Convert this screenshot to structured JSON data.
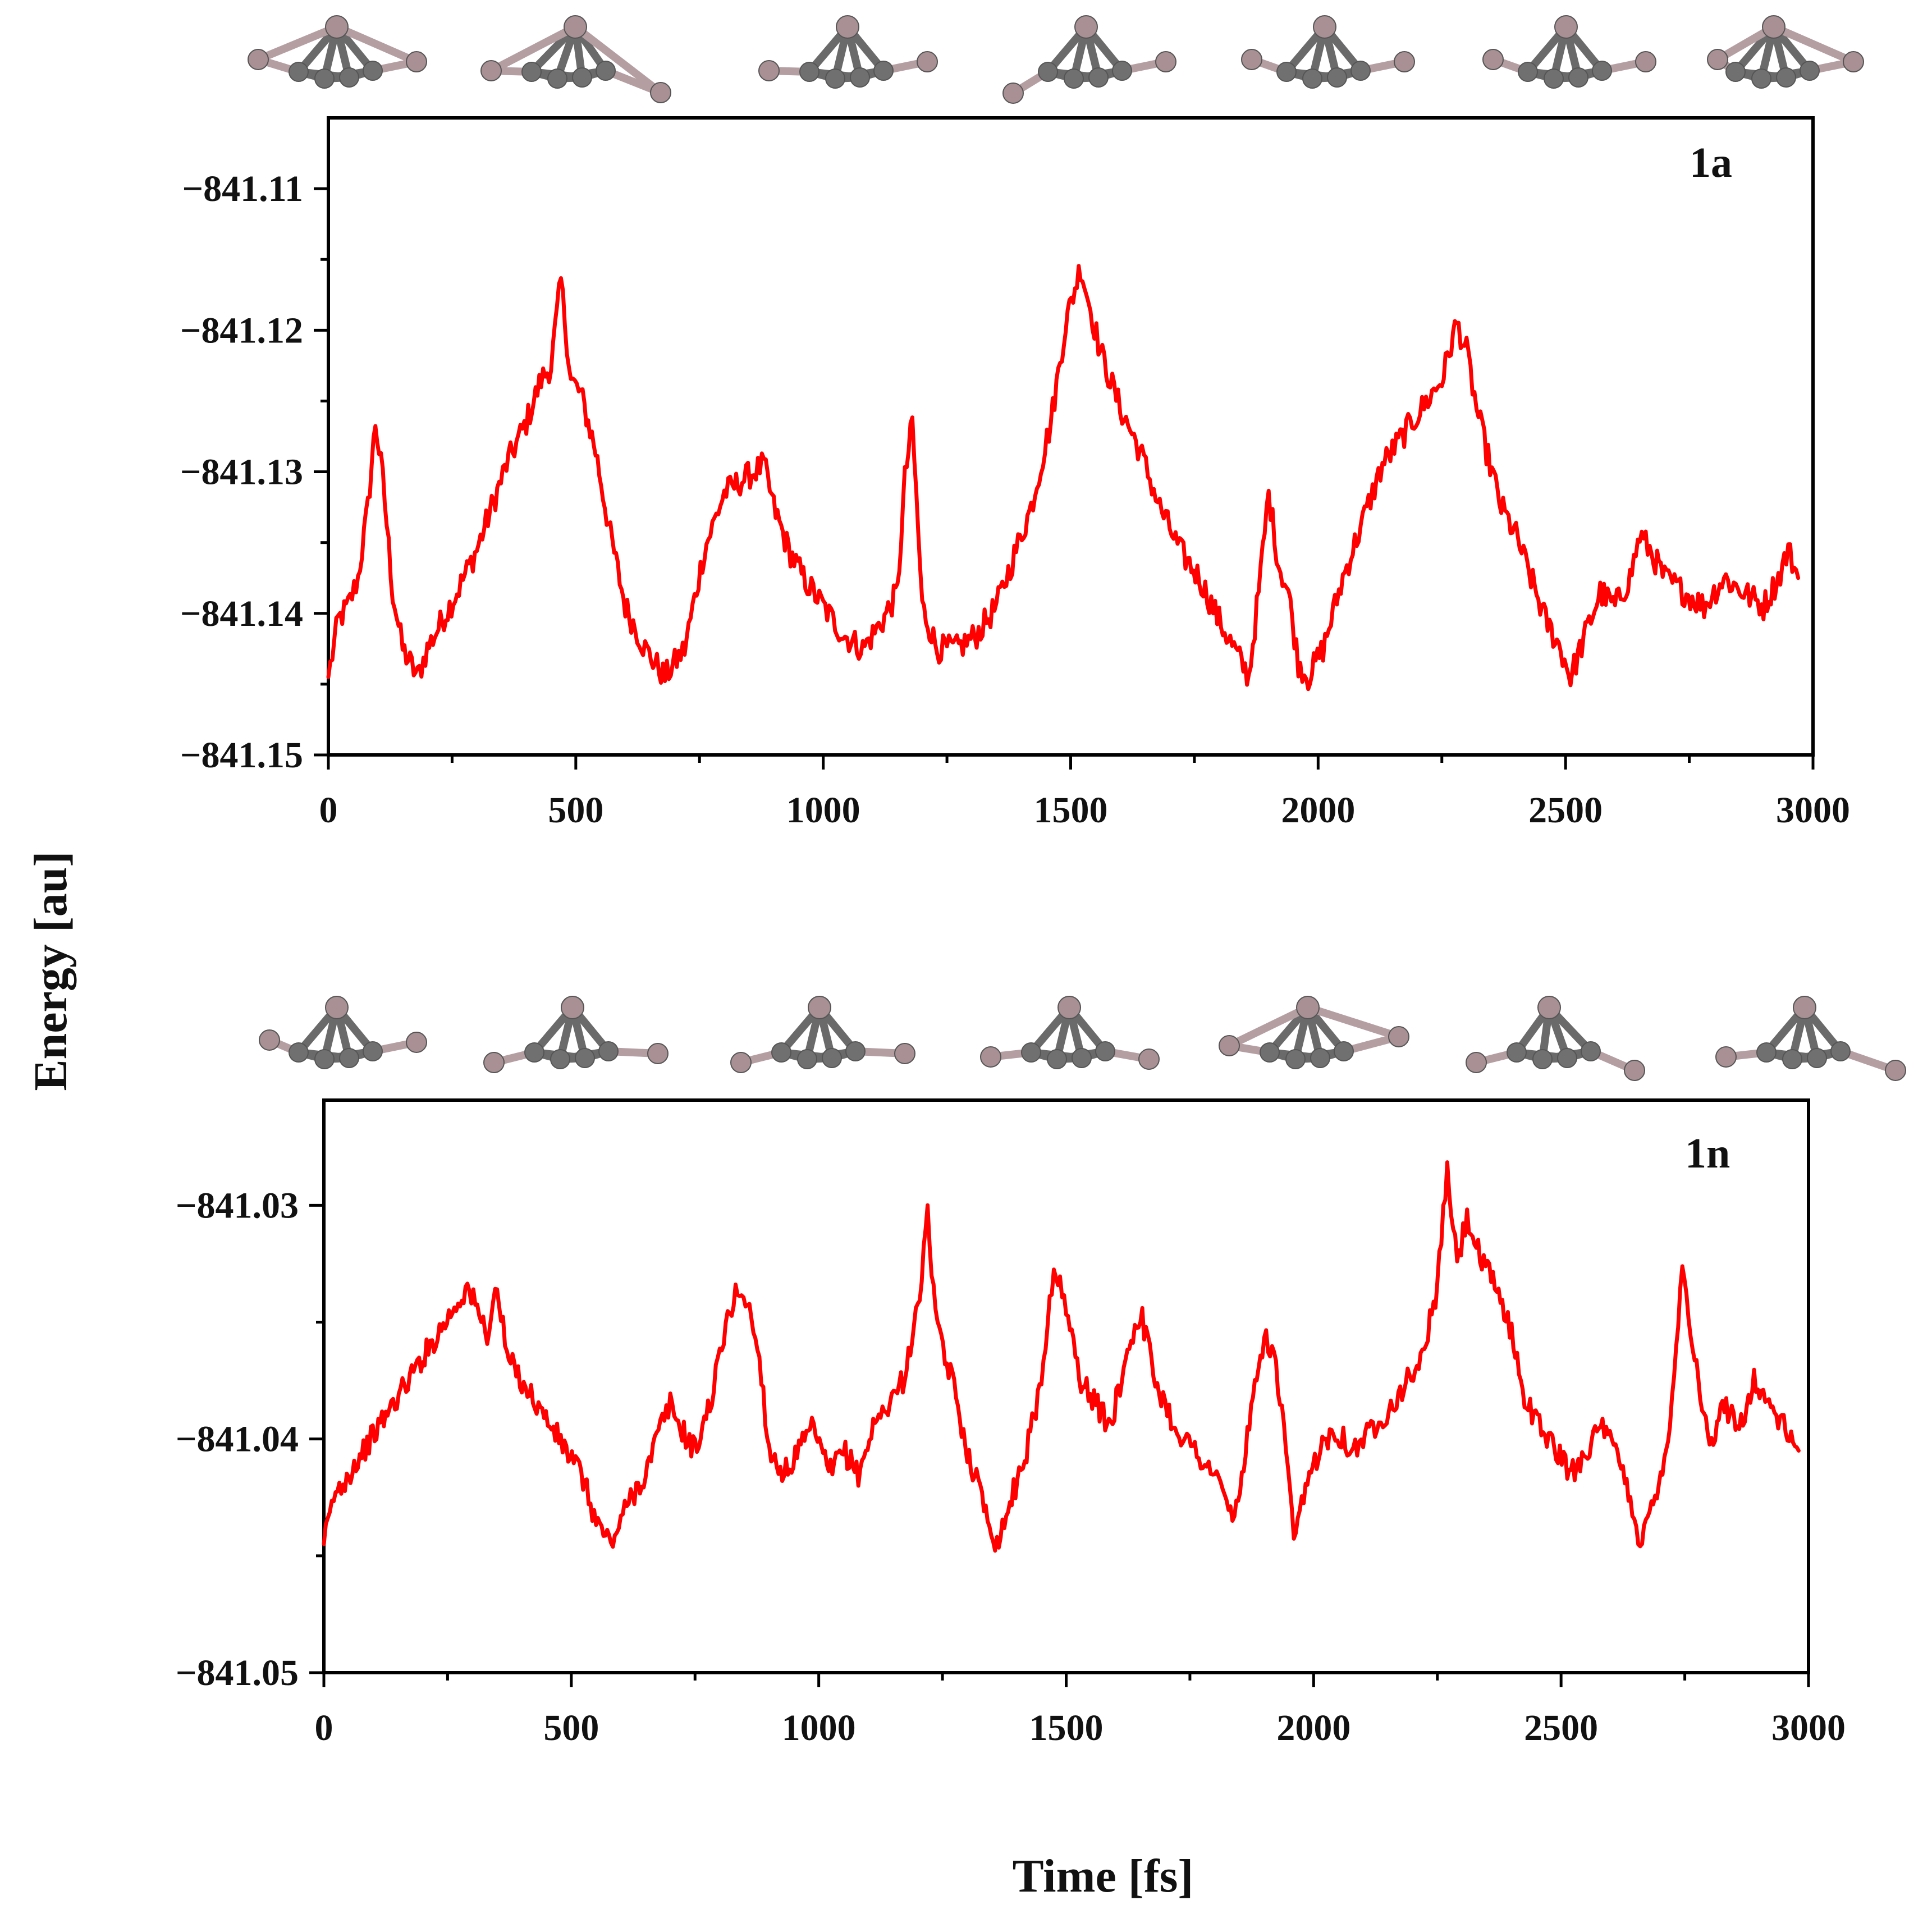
{
  "figure": {
    "ylabel": "Energy [au]",
    "xlabel": "Time [fs]"
  },
  "colors": {
    "series": "#ff0000",
    "atom_gray": "#707070",
    "atom_pink": "#a89094",
    "bond_gray": "#6a6a6a",
    "bond_pink": "#b49ea2"
  },
  "chart_data": [
    {
      "type": "line",
      "panel_label": "1a",
      "title": "",
      "xlabel": "Time [fs]",
      "ylabel": "Energy [au]",
      "xlim": [
        0,
        3000
      ],
      "ylim": [
        -841.15,
        -841.105
      ],
      "xticks": [
        0,
        500,
        1000,
        1500,
        2000,
        2500,
        3000
      ],
      "xtick_labels": [
        "0",
        "500",
        "1000",
        "1500",
        "2000",
        "2500",
        "3000"
      ],
      "yticks": [
        -841.11,
        -841.12,
        -841.13,
        -841.14,
        -841.15
      ],
      "ytick_labels": [
        "−841.11",
        "−841.12",
        "−841.13",
        "−841.14",
        "−841.15"
      ],
      "grid": false,
      "series": [
        {
          "name": "1a",
          "x": [
            0,
            20,
            40,
            60,
            80,
            95,
            110,
            130,
            150,
            180,
            200,
            230,
            260,
            300,
            330,
            360,
            400,
            430,
            450,
            470,
            490,
            510,
            540,
            570,
            600,
            640,
            680,
            720,
            760,
            800,
            840,
            880,
            900,
            930,
            960,
            1000,
            1040,
            1080,
            1120,
            1150,
            1165,
            1180,
            1200,
            1230,
            1270,
            1310,
            1350,
            1390,
            1420,
            1460,
            1490,
            1520,
            1540,
            1560,
            1600,
            1640,
            1680,
            1720,
            1760,
            1800,
            1830,
            1860,
            1880,
            1900,
            1920,
            1940,
            1960,
            1980,
            2010,
            2050,
            2090,
            2130,
            2170,
            2210,
            2250,
            2280,
            2300,
            2320,
            2340,
            2370,
            2400,
            2430,
            2460,
            2490,
            2510,
            2540,
            2570,
            2600,
            2630,
            2650,
            2670,
            2700,
            2740,
            2780,
            2820,
            2860,
            2900,
            2930,
            2950,
            2970
          ],
          "values": [
            -841.1445,
            -841.1405,
            -841.1395,
            -841.1375,
            -841.1325,
            -841.1265,
            -841.1305,
            -841.1385,
            -841.1425,
            -841.1445,
            -841.1425,
            -841.1405,
            -841.1385,
            -841.1355,
            -841.1325,
            -841.1295,
            -841.1265,
            -841.1235,
            -841.1225,
            -841.1165,
            -841.1235,
            -841.1245,
            -841.1285,
            -841.1345,
            -841.1395,
            -841.1425,
            -841.1445,
            -841.1425,
            -841.1355,
            -841.1315,
            -841.1305,
            -841.1295,
            -841.1325,
            -841.1355,
            -841.1375,
            -841.1395,
            -841.1415,
            -841.1425,
            -841.1405,
            -841.1385,
            -841.1305,
            -841.1265,
            -841.1395,
            -841.1425,
            -841.1425,
            -841.1415,
            -841.1395,
            -841.1355,
            -841.1325,
            -841.1265,
            -841.1195,
            -841.1155,
            -841.1185,
            -841.1215,
            -841.1255,
            -841.1285,
            -841.1325,
            -841.1355,
            -841.1375,
            -841.1405,
            -841.1425,
            -841.1445,
            -841.1385,
            -841.1315,
            -841.1365,
            -841.1385,
            -841.1435,
            -841.1445,
            -841.1425,
            -841.1375,
            -841.1335,
            -841.1295,
            -841.1275,
            -841.1255,
            -841.1235,
            -841.1195,
            -841.1215,
            -841.1255,
            -841.1285,
            -841.1325,
            -841.1345,
            -841.1375,
            -841.1405,
            -841.1425,
            -841.1445,
            -841.1415,
            -841.1385,
            -841.1395,
            -841.1375,
            -841.1345,
            -841.1355,
            -841.1375,
            -841.1385,
            -841.1395,
            -841.1375,
            -841.1385,
            -841.1395,
            -841.1375,
            -841.1355,
            -841.1375
          ]
        }
      ]
    },
    {
      "type": "line",
      "panel_label": "1n",
      "title": "",
      "xlabel": "Time [fs]",
      "ylabel": "Energy [au]",
      "xlim": [
        0,
        3000
      ],
      "ylim": [
        -841.05,
        -841.0255
      ],
      "xticks": [
        0,
        500,
        1000,
        1500,
        2000,
        2500,
        3000
      ],
      "xtick_labels": [
        "0",
        "500",
        "1000",
        "1500",
        "2000",
        "2500",
        "3000"
      ],
      "yticks": [
        -841.03,
        -841.04,
        -841.05
      ],
      "ytick_labels": [
        "−841.03",
        "−841.04",
        "−841.05"
      ],
      "grid": false,
      "series": [
        {
          "name": "1n",
          "x": [
            0,
            20,
            50,
            80,
            110,
            140,
            170,
            200,
            230,
            260,
            290,
            310,
            330,
            350,
            370,
            400,
            430,
            460,
            490,
            520,
            550,
            580,
            620,
            650,
            680,
            700,
            720,
            750,
            780,
            820,
            840,
            860,
            880,
            900,
            930,
            960,
            990,
            1020,
            1050,
            1080,
            1110,
            1140,
            1170,
            1200,
            1220,
            1240,
            1270,
            1300,
            1330,
            1360,
            1390,
            1420,
            1450,
            1475,
            1500,
            1530,
            1560,
            1590,
            1620,
            1650,
            1680,
            1720,
            1760,
            1800,
            1840,
            1870,
            1900,
            1920,
            1940,
            1960,
            1980,
            2010,
            2040,
            2080,
            2120,
            2160,
            2190,
            2220,
            2250,
            2270,
            2290,
            2310,
            2340,
            2370,
            2400,
            2430,
            2460,
            2490,
            2520,
            2550,
            2580,
            2610,
            2640,
            2660,
            2690,
            2720,
            2745,
            2770,
            2800,
            2830,
            2860,
            2890,
            2920,
            2950,
            2980
          ],
          "values": [
            -841.0445,
            -841.0425,
            -841.0415,
            -841.0405,
            -841.0395,
            -841.0385,
            -841.0375,
            -841.0365,
            -841.0355,
            -841.0345,
            -841.0335,
            -841.0345,
            -841.0355,
            -841.0335,
            -841.0365,
            -841.0375,
            -841.0385,
            -841.0395,
            -841.0405,
            -841.0415,
            -841.0435,
            -841.0445,
            -841.0425,
            -841.0415,
            -841.0395,
            -841.0385,
            -841.0395,
            -841.0405,
            -841.0385,
            -841.0345,
            -841.0335,
            -841.0345,
            -841.0365,
            -841.0405,
            -841.0415,
            -841.0405,
            -841.0395,
            -841.0415,
            -841.0405,
            -841.0415,
            -841.0395,
            -841.0385,
            -841.0375,
            -841.0345,
            -841.0305,
            -841.0355,
            -841.0375,
            -841.0405,
            -841.0425,
            -841.0445,
            -841.0425,
            -841.0405,
            -841.0375,
            -841.0325,
            -841.0345,
            -841.0375,
            -841.0385,
            -841.0395,
            -841.0365,
            -841.0345,
            -841.0375,
            -841.0395,
            -841.0405,
            -841.0415,
            -841.0435,
            -841.0395,
            -841.0355,
            -841.0365,
            -841.0395,
            -841.0445,
            -841.0425,
            -841.0405,
            -841.0395,
            -841.0405,
            -841.0395,
            -841.0385,
            -841.0375,
            -841.0365,
            -841.0335,
            -841.0285,
            -841.0325,
            -841.0305,
            -841.0325,
            -841.0335,
            -841.0355,
            -841.0385,
            -841.0395,
            -841.0405,
            -841.0415,
            -841.0405,
            -841.0395,
            -841.0405,
            -841.0425,
            -841.0445,
            -841.0425,
            -841.0395,
            -841.0325,
            -841.0365,
            -841.0405,
            -841.0385,
            -841.0395,
            -841.0375,
            -841.0385,
            -841.0395,
            -841.0405
          ]
        }
      ]
    }
  ]
}
